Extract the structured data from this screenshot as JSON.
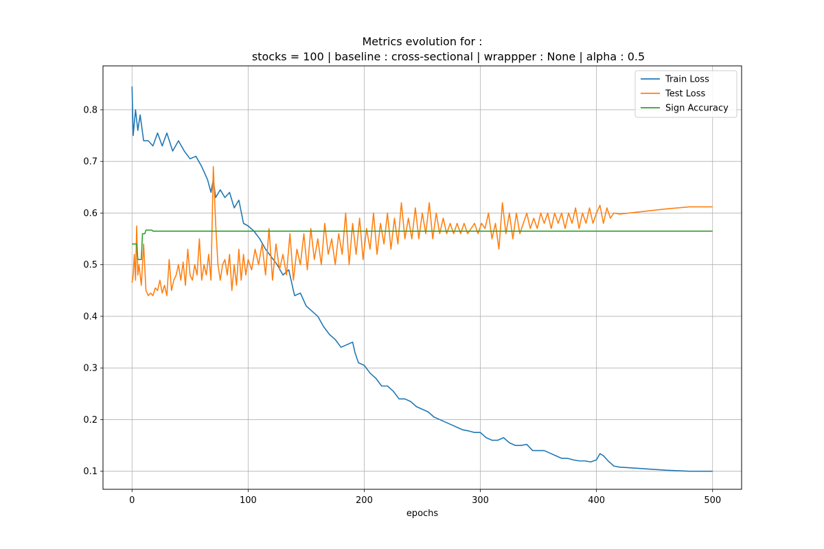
{
  "chart_data": {
    "type": "line",
    "title_line1": "Metrics evolution for :",
    "title_line2": "stocks = 100 | baseline : cross-sectional | wrappper : None | alpha : 0.5",
    "xlabel": "epochs",
    "ylabel": "",
    "xlim": [
      -25,
      525
    ],
    "ylim": [
      0.065,
      0.885
    ],
    "xticks": [
      0,
      100,
      200,
      300,
      400,
      500
    ],
    "yticks": [
      0.1,
      0.2,
      0.3,
      0.4,
      0.5,
      0.6,
      0.7,
      0.8
    ],
    "grid": true,
    "legend_position": "upper-right",
    "series": [
      {
        "name": "Train Loss",
        "color": "#1f77b4",
        "x": [
          0,
          1,
          3,
          5,
          7,
          10,
          14,
          18,
          22,
          26,
          30,
          35,
          40,
          45,
          50,
          55,
          60,
          65,
          68,
          70,
          72,
          76,
          80,
          84,
          88,
          92,
          96,
          100,
          105,
          110,
          115,
          120,
          125,
          130,
          135,
          138,
          140,
          145,
          150,
          155,
          160,
          165,
          170,
          175,
          180,
          185,
          190,
          192,
          195,
          200,
          205,
          210,
          215,
          220,
          225,
          230,
          235,
          240,
          245,
          250,
          255,
          260,
          265,
          270,
          275,
          280,
          285,
          290,
          295,
          300,
          305,
          310,
          315,
          320,
          325,
          330,
          335,
          340,
          345,
          350,
          355,
          360,
          365,
          370,
          375,
          380,
          385,
          390,
          395,
          400,
          403,
          406,
          410,
          415,
          420,
          440,
          460,
          480,
          500
        ],
        "values": [
          0.845,
          0.75,
          0.8,
          0.76,
          0.79,
          0.74,
          0.74,
          0.73,
          0.755,
          0.73,
          0.755,
          0.72,
          0.74,
          0.72,
          0.705,
          0.71,
          0.69,
          0.665,
          0.64,
          0.665,
          0.63,
          0.645,
          0.63,
          0.64,
          0.61,
          0.625,
          0.58,
          0.575,
          0.565,
          0.55,
          0.53,
          0.515,
          0.5,
          0.48,
          0.49,
          0.46,
          0.44,
          0.445,
          0.42,
          0.41,
          0.4,
          0.38,
          0.365,
          0.355,
          0.34,
          0.345,
          0.35,
          0.33,
          0.31,
          0.305,
          0.29,
          0.28,
          0.265,
          0.265,
          0.255,
          0.24,
          0.24,
          0.235,
          0.225,
          0.22,
          0.215,
          0.205,
          0.2,
          0.195,
          0.19,
          0.185,
          0.18,
          0.178,
          0.175,
          0.175,
          0.165,
          0.16,
          0.16,
          0.165,
          0.155,
          0.15,
          0.15,
          0.152,
          0.14,
          0.14,
          0.14,
          0.135,
          0.13,
          0.125,
          0.125,
          0.122,
          0.12,
          0.12,
          0.118,
          0.122,
          0.134,
          0.13,
          0.12,
          0.11,
          0.108,
          0.105,
          0.102,
          0.1,
          0.1
        ]
      },
      {
        "name": "Test Loss",
        "color": "#ff7f0e",
        "x": [
          0,
          1,
          2,
          3,
          4,
          5,
          6,
          8,
          10,
          12,
          14,
          16,
          18,
          20,
          22,
          24,
          26,
          28,
          30,
          32,
          34,
          36,
          38,
          40,
          42,
          44,
          46,
          48,
          50,
          52,
          54,
          56,
          58,
          60,
          62,
          64,
          66,
          68,
          70,
          72,
          74,
          76,
          78,
          80,
          82,
          84,
          86,
          88,
          90,
          92,
          94,
          96,
          98,
          100,
          103,
          106,
          109,
          112,
          115,
          118,
          121,
          124,
          127,
          130,
          133,
          136,
          139,
          142,
          145,
          148,
          151,
          154,
          157,
          160,
          163,
          166,
          169,
          172,
          175,
          178,
          181,
          184,
          187,
          190,
          193,
          196,
          199,
          202,
          205,
          208,
          211,
          214,
          217,
          220,
          223,
          226,
          229,
          232,
          235,
          238,
          241,
          244,
          247,
          250,
          253,
          256,
          259,
          262,
          265,
          268,
          271,
          274,
          277,
          280,
          283,
          286,
          289,
          292,
          295,
          298,
          301,
          304,
          307,
          310,
          313,
          316,
          319,
          322,
          325,
          328,
          331,
          334,
          337,
          340,
          343,
          346,
          349,
          352,
          355,
          358,
          361,
          364,
          367,
          370,
          373,
          376,
          379,
          382,
          385,
          388,
          391,
          394,
          397,
          400,
          403,
          406,
          409,
          412,
          415,
          420,
          440,
          460,
          480,
          500
        ],
        "values": [
          0.465,
          0.48,
          0.52,
          0.47,
          0.575,
          0.48,
          0.5,
          0.46,
          0.54,
          0.45,
          0.44,
          0.445,
          0.44,
          0.455,
          0.45,
          0.47,
          0.445,
          0.46,
          0.44,
          0.51,
          0.45,
          0.47,
          0.48,
          0.5,
          0.47,
          0.505,
          0.46,
          0.53,
          0.48,
          0.47,
          0.5,
          0.48,
          0.55,
          0.47,
          0.5,
          0.48,
          0.52,
          0.47,
          0.69,
          0.58,
          0.5,
          0.47,
          0.5,
          0.51,
          0.48,
          0.52,
          0.45,
          0.5,
          0.46,
          0.53,
          0.47,
          0.52,
          0.48,
          0.51,
          0.49,
          0.53,
          0.5,
          0.54,
          0.48,
          0.57,
          0.47,
          0.54,
          0.49,
          0.52,
          0.48,
          0.56,
          0.47,
          0.53,
          0.5,
          0.56,
          0.49,
          0.57,
          0.51,
          0.55,
          0.5,
          0.58,
          0.52,
          0.55,
          0.5,
          0.56,
          0.52,
          0.6,
          0.5,
          0.58,
          0.52,
          0.59,
          0.51,
          0.57,
          0.53,
          0.6,
          0.52,
          0.58,
          0.54,
          0.6,
          0.53,
          0.59,
          0.54,
          0.62,
          0.55,
          0.59,
          0.55,
          0.61,
          0.55,
          0.6,
          0.56,
          0.62,
          0.55,
          0.6,
          0.56,
          0.59,
          0.56,
          0.58,
          0.56,
          0.58,
          0.56,
          0.58,
          0.56,
          0.57,
          0.58,
          0.56,
          0.58,
          0.57,
          0.6,
          0.55,
          0.58,
          0.53,
          0.62,
          0.56,
          0.6,
          0.55,
          0.6,
          0.56,
          0.58,
          0.6,
          0.57,
          0.59,
          0.57,
          0.6,
          0.58,
          0.6,
          0.57,
          0.6,
          0.58,
          0.6,
          0.57,
          0.6,
          0.58,
          0.61,
          0.57,
          0.6,
          0.58,
          0.61,
          0.58,
          0.6,
          0.615,
          0.58,
          0.61,
          0.59,
          0.6,
          0.598,
          0.603,
          0.608,
          0.612,
          0.612
        ]
      },
      {
        "name": "Sign Accuracy",
        "color": "#2ca02c",
        "x": [
          0,
          4,
          5,
          8,
          9,
          11,
          12,
          17,
          18,
          500
        ],
        "values": [
          0.54,
          0.54,
          0.51,
          0.51,
          0.56,
          0.56,
          0.567,
          0.567,
          0.565,
          0.565
        ]
      }
    ]
  }
}
